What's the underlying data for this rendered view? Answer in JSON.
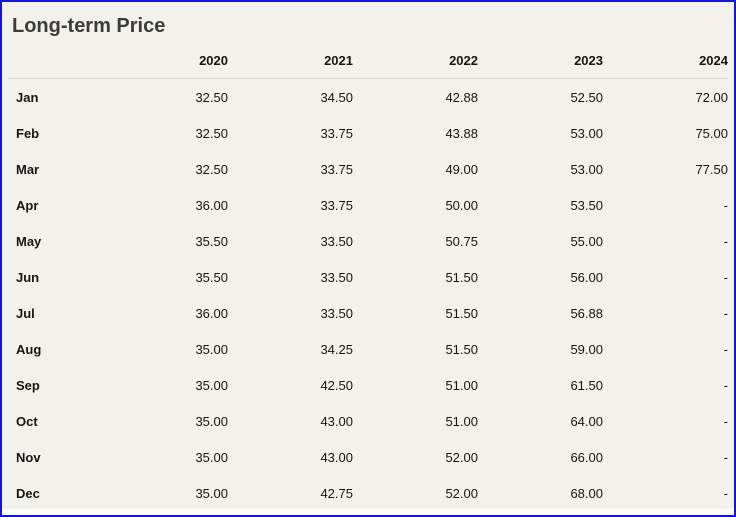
{
  "chart_data": {
    "type": "table",
    "title": "Long-term Price",
    "columns": [
      "2020",
      "2021",
      "2022",
      "2023",
      "2024"
    ],
    "row_labels": [
      "Jan",
      "Feb",
      "Mar",
      "Apr",
      "May",
      "Jun",
      "Jul",
      "Aug",
      "Sep",
      "Oct",
      "Nov",
      "Dec"
    ],
    "rows": [
      [
        "32.50",
        "34.50",
        "42.88",
        "52.50",
        "72.00"
      ],
      [
        "32.50",
        "33.75",
        "43.88",
        "53.00",
        "75.00"
      ],
      [
        "32.50",
        "33.75",
        "49.00",
        "53.00",
        "77.50"
      ],
      [
        "36.00",
        "33.75",
        "50.00",
        "53.50",
        "-"
      ],
      [
        "35.50",
        "33.50",
        "50.75",
        "55.00",
        "-"
      ],
      [
        "35.50",
        "33.50",
        "51.50",
        "56.00",
        "-"
      ],
      [
        "36.00",
        "33.50",
        "51.50",
        "56.88",
        "-"
      ],
      [
        "35.00",
        "34.25",
        "51.50",
        "59.00",
        "-"
      ],
      [
        "35.00",
        "42.50",
        "51.00",
        "61.50",
        "-"
      ],
      [
        "35.00",
        "43.00",
        "51.00",
        "64.00",
        "-"
      ],
      [
        "35.00",
        "43.00",
        "52.00",
        "66.00",
        "-"
      ],
      [
        "35.00",
        "42.75",
        "52.00",
        "68.00",
        "-"
      ]
    ],
    "missing_value_placeholder": "-"
  },
  "colors": {
    "border-blue": "#1414dd",
    "panel-bg": "#f3f1ec",
    "title-color": "#3c3c3c",
    "text-color": "#161616",
    "separator": "#d9d7d1"
  }
}
